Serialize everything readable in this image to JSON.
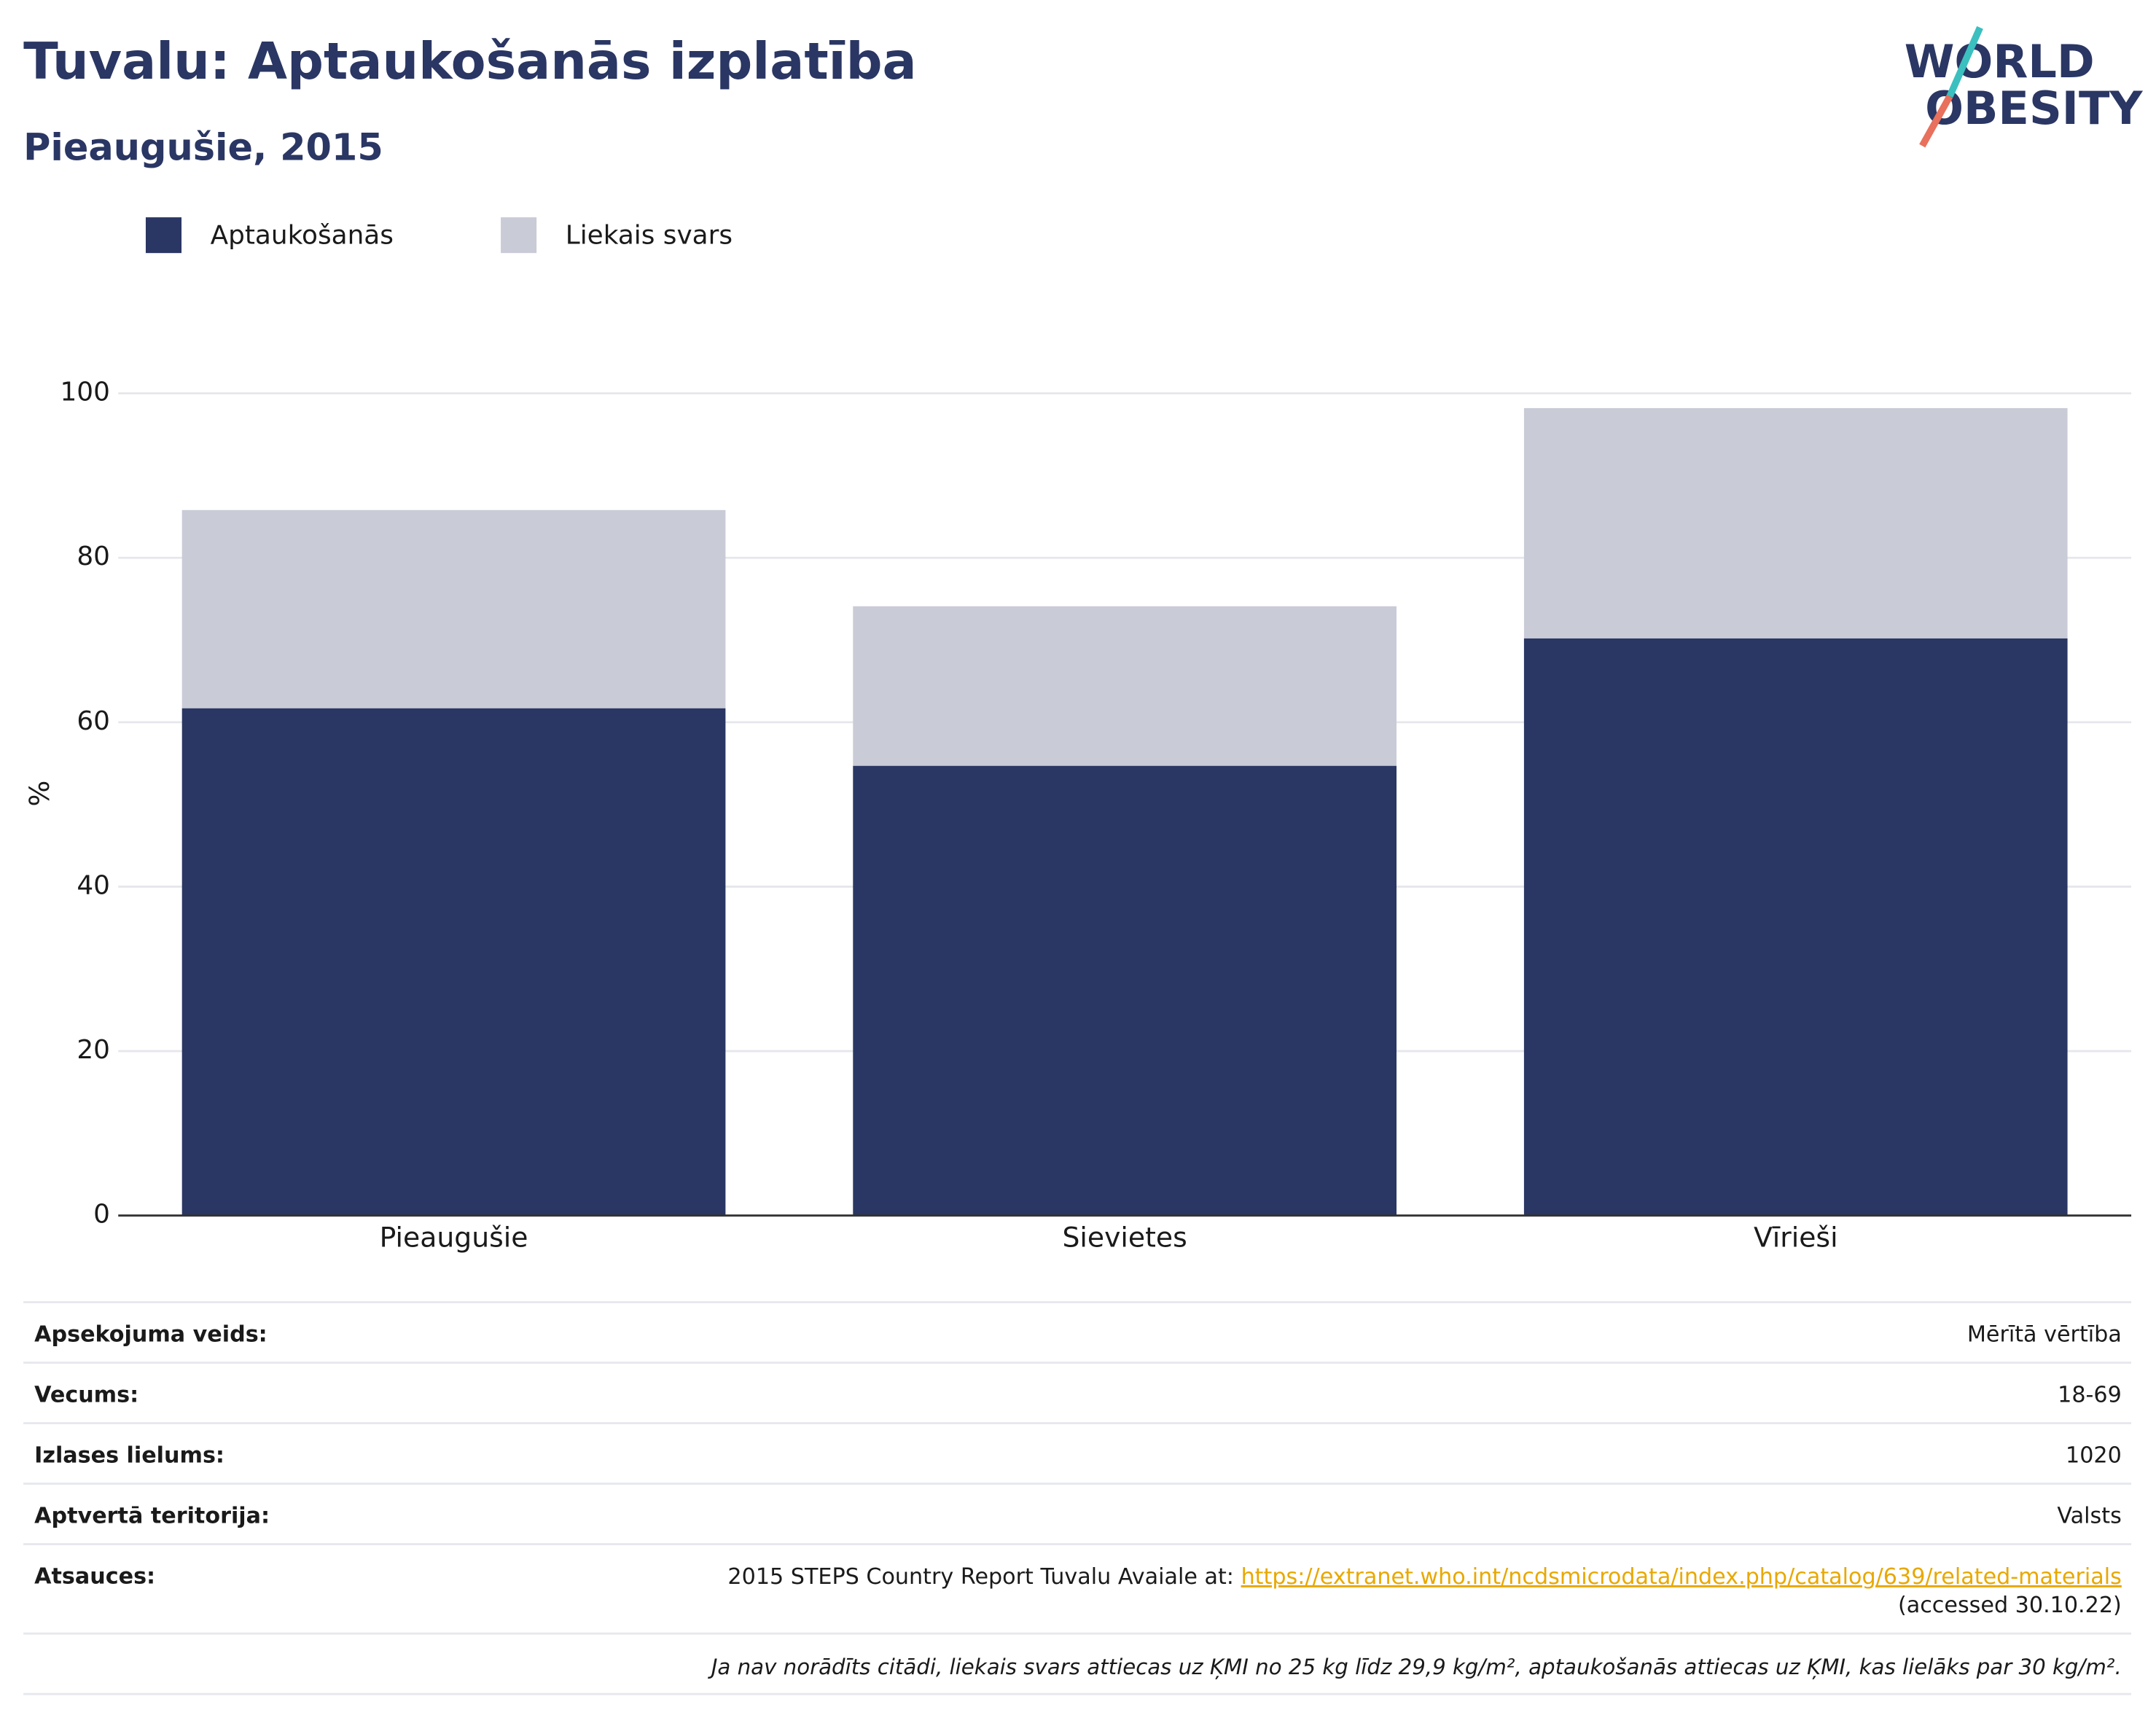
{
  "chart_data": {
    "type": "bar",
    "stacked": true,
    "title": "Tuvalu: Aptaukošanās izplatība",
    "subtitle": "Pieaugušie, 2015",
    "y_label": "%",
    "categories": [
      "Pieaugušie",
      "Sievietes",
      "Vīrieši"
    ],
    "series": [
      {
        "name": "Aptaukošanās",
        "color": "#2a3663",
        "values": [
          61.7,
          54.7,
          70.2
        ]
      },
      {
        "name": "Liekais svars",
        "color": "#c9cbd6",
        "values": [
          24.1,
          19.4,
          28.0
        ]
      }
    ],
    "ylim": [
      0,
      100
    ],
    "yticks": [
      0,
      20,
      40,
      60,
      80,
      100
    ],
    "grid": true,
    "legend": "top-left"
  },
  "logo": {
    "lines": [
      "WORLD",
      "OBESITY"
    ]
  },
  "info": {
    "rows": [
      {
        "label": "Apsekojuma veids:",
        "value": "Mērītā vērtība"
      },
      {
        "label": "Vecums:",
        "value": "18-69"
      },
      {
        "label": "Izlases lielums:",
        "value": "1020"
      },
      {
        "label": "Aptvertā teritorija:",
        "value": "Valsts"
      }
    ],
    "references": {
      "label": "Atsauces:",
      "text": "2015 STEPS Country Report Tuvalu Avaiale at: ",
      "link": "https://extranet.who.int/ncdsmicrodata/index.php/catalog/639/related-materials",
      "accessed": "(accessed 30.10.22)"
    },
    "note": "Ja nav norādīts citādi, liekais svars attiecas uz ĶMI no 25 kg līdz 29,9 kg/m², aptaukošanās attiecas uz ĶMI, kas lielāks par 30 kg/m²."
  }
}
